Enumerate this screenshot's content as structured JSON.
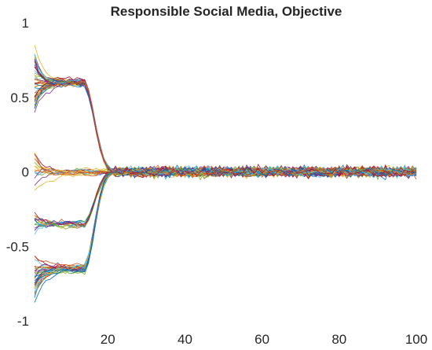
{
  "chart_data": {
    "type": "line",
    "title": "Responsible Social Media, Objective",
    "xlabel": "",
    "ylabel": "",
    "xlim": [
      1,
      100
    ],
    "ylim": [
      -1,
      1
    ],
    "xticks": [
      20,
      40,
      60,
      80,
      100
    ],
    "xtick_labels": [
      "20",
      "40",
      "60",
      "80",
      "100"
    ],
    "yticks": [
      -1,
      -0.5,
      0,
      0.5,
      1
    ],
    "ytick_labels": [
      "-1",
      "-0.5",
      "0",
      "0.5",
      "1"
    ],
    "grid": false,
    "legend": "none",
    "x": [
      1,
      100
    ],
    "convergence_x": 20,
    "plateau_end_x": 14,
    "steady_state_mean": 0,
    "steady_state_noise": 0.03,
    "series_count": 100,
    "initial_opinion_range": [
      -1,
      1
    ],
    "cluster_levels": [
      0.6,
      0,
      -0.35,
      -0.65
    ],
    "colors": [
      "#0072BD",
      "#D95319",
      "#EDB120",
      "#7E2F8E",
      "#77AC30",
      "#4DBEEE",
      "#A2142F"
    ]
  }
}
